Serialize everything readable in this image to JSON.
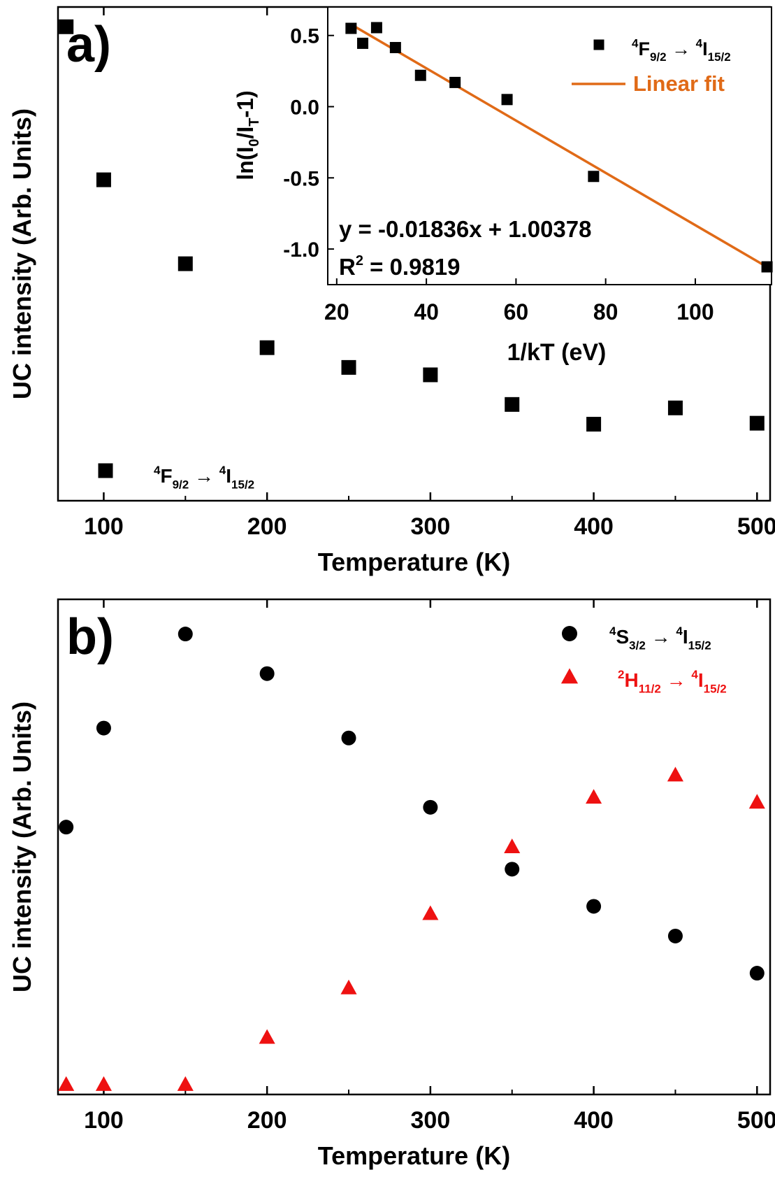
{
  "chart_data": [
    {
      "panel": "a)",
      "type": "scatter",
      "xlabel": "Temperature (K)",
      "ylabel": "UC intensity (Arb. Units)",
      "xlim": [
        72,
        508
      ],
      "ylim": [
        0,
        1
      ],
      "xticks": [
        100,
        200,
        300,
        400,
        500
      ],
      "yticks_shown": false,
      "marker": "square",
      "color": "#000000",
      "series": [
        {
          "legend": {
            "sup1": "4",
            "main1": "F",
            "sub1": "9/2",
            "arrow": "→",
            "sup2": "4",
            "main2": "I",
            "sub2": "15/2"
          },
          "x": [
            77,
            100,
            150,
            200,
            250,
            300,
            350,
            400,
            450,
            500
          ],
          "y": [
            0.96,
            0.65,
            0.48,
            0.31,
            0.27,
            0.255,
            0.195,
            0.155,
            0.188,
            0.157
          ]
        }
      ],
      "legend_position": "bottom-left",
      "inset": {
        "type": "scatter",
        "xlabel": "1/kT (eV)",
        "ylabel_parts": {
          "pre": "ln(I",
          "sub1": "0",
          "mid": "/I",
          "sub2": "T",
          "post": "-1)"
        },
        "xlim": [
          18,
          117
        ],
        "ylim": [
          -1.25,
          0.7
        ],
        "xticks": [
          20,
          40,
          60,
          80,
          100
        ],
        "yticks": [
          0.5,
          0.0,
          -0.5,
          -1.0
        ],
        "ytick_labels": [
          "0.5",
          "0.0",
          "-0.5",
          "-1.0"
        ],
        "marker": "square",
        "x": [
          23.2,
          25.8,
          28.9,
          33.1,
          38.7,
          46.4,
          58.0,
          77.3,
          116.0
        ],
        "y": [
          0.55,
          0.445,
          0.555,
          0.415,
          0.22,
          0.17,
          0.05,
          -0.49,
          -1.125
        ],
        "fit": {
          "slope": -0.01836,
          "intercept": 1.00378,
          "color": "#e06a17",
          "x_range": [
            23.2,
            116.0
          ]
        },
        "equation": "y = -0.01836x + 1.00378",
        "r2_parts": {
          "pre": "R",
          "sup": "2",
          "post": " = 0.9819"
        },
        "legend": [
          {
            "label": {
              "sup1": "4",
              "main1": "F",
              "sub1": "9/2",
              "arrow": "→",
              "sup2": "4",
              "main2": "I",
              "sub2": "15/2"
            },
            "kind": "marker",
            "color": "#000000"
          },
          {
            "label": "Linear fit",
            "kind": "line",
            "color": "#e06a17"
          }
        ]
      }
    },
    {
      "panel": "b)",
      "type": "scatter",
      "xlabel": "Temperature (K)",
      "ylabel": "UC intensity (Arb. Units)",
      "xlim": [
        72,
        508
      ],
      "ylim": [
        0,
        1
      ],
      "xticks": [
        100,
        200,
        300,
        400,
        500
      ],
      "yticks_shown": false,
      "legend_position": "top-right",
      "series": [
        {
          "legend": {
            "sup1": "4",
            "main1": "S",
            "sub1": "3/2",
            "arrow": "→",
            "sup2": "4",
            "main2": "I",
            "sub2": "15/2"
          },
          "marker": "circle",
          "color": "#000000",
          "x": [
            77,
            100,
            150,
            200,
            250,
            300,
            350,
            400,
            450,
            500
          ],
          "y": [
            0.54,
            0.74,
            0.93,
            0.85,
            0.72,
            0.58,
            0.455,
            0.38,
            0.32,
            0.245
          ]
        },
        {
          "legend": {
            "sup1": "2",
            "main1": "H",
            "sub1": "11/2",
            "arrow": "→",
            "sup2": "4",
            "main2": "I",
            "sub2": "15/2"
          },
          "marker": "triangle",
          "color": "#ee1111",
          "x": [
            77,
            100,
            150,
            200,
            250,
            300,
            350,
            400,
            450,
            500
          ],
          "y": [
            0.02,
            0.02,
            0.02,
            0.115,
            0.215,
            0.365,
            0.5,
            0.6,
            0.645,
            0.59
          ]
        }
      ]
    }
  ]
}
